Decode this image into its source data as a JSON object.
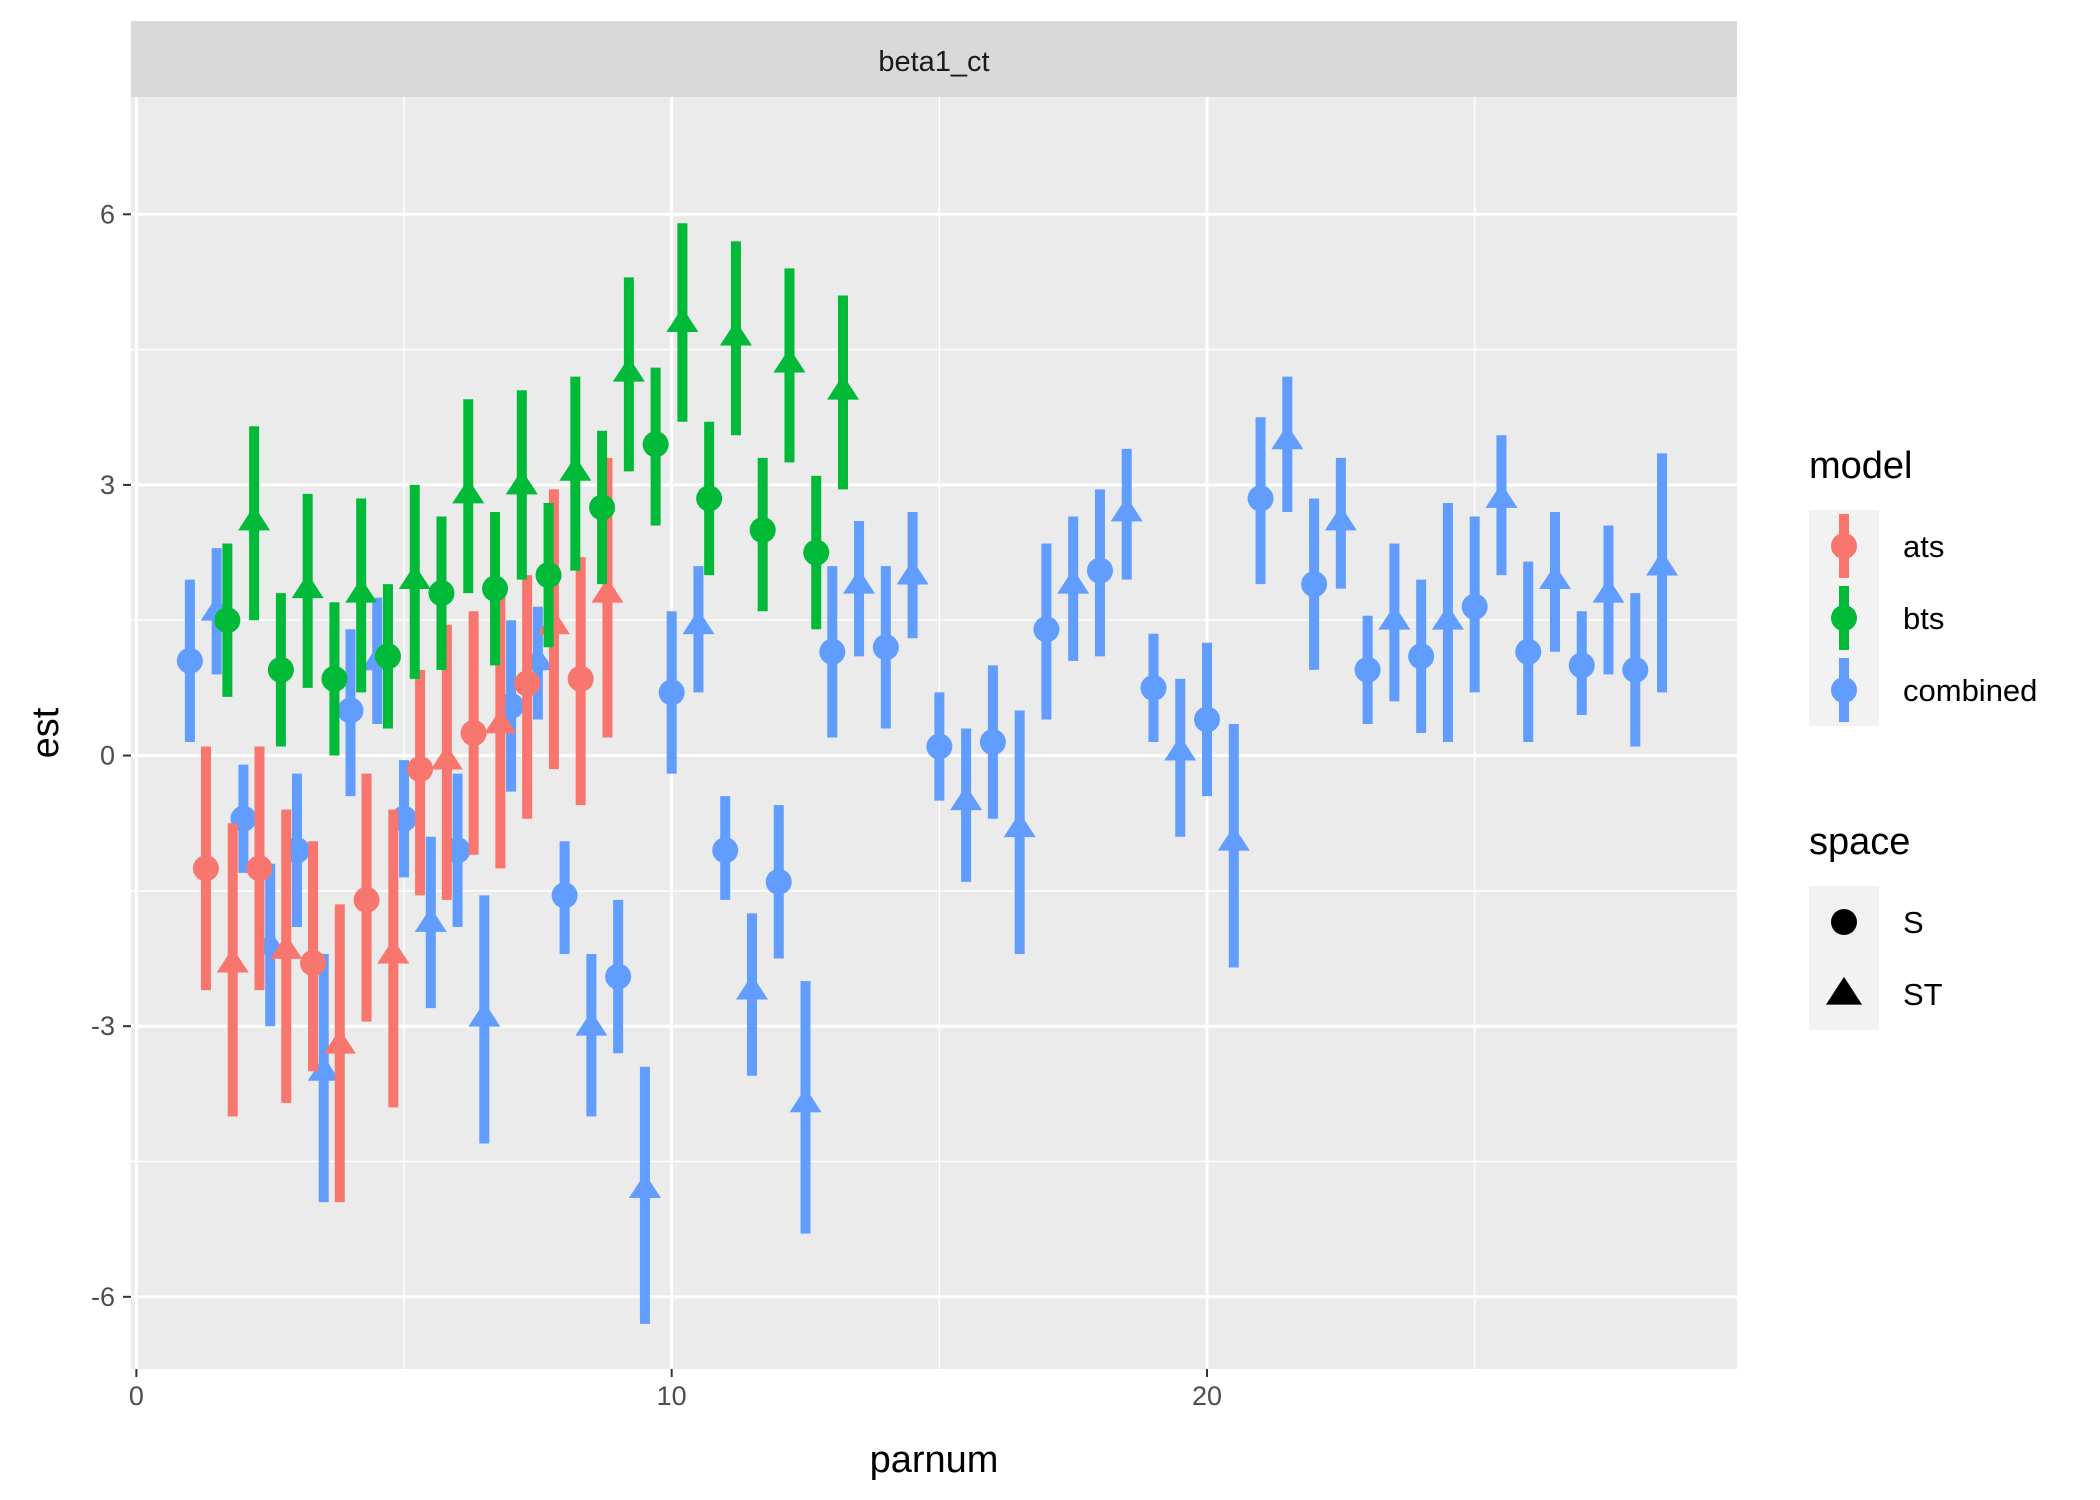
{
  "chart_data": {
    "type": "scatter",
    "facet_label": "beta1_ct",
    "xlabel": "parnum",
    "ylabel": "est",
    "xlim": [
      -0.1,
      29.9
    ],
    "ylim": [
      -6.8,
      7.3
    ],
    "x_ticks": [
      0,
      10,
      20
    ],
    "x_tick_labels": [
      "0",
      "10",
      "20"
    ],
    "y_ticks": [
      6,
      3,
      0,
      -3,
      -6
    ],
    "y_tick_labels": [
      "6",
      "3",
      "0",
      "-3",
      "-6"
    ],
    "grid": true,
    "legend_position": "right",
    "colors": {
      "ats": "#F8766D",
      "bts": "#00BA38",
      "combined": "#619CFF"
    },
    "legends": [
      {
        "title": "model",
        "entries": [
          "ats",
          "bts",
          "combined"
        ]
      },
      {
        "title": "space",
        "entries": [
          "S",
          "ST"
        ]
      }
    ],
    "series": [
      {
        "model": "combined",
        "shape": "circle",
        "points": [
          {
            "x": 1.0,
            "y": 1.05,
            "lo": 0.15,
            "hi": 1.95
          },
          {
            "x": 2.0,
            "y": -0.7,
            "lo": -1.3,
            "hi": -0.1
          },
          {
            "x": 3.0,
            "y": -1.05,
            "lo": -1.9,
            "hi": -0.2
          },
          {
            "x": 4.0,
            "y": 0.5,
            "lo": -0.45,
            "hi": 1.4
          },
          {
            "x": 5.0,
            "y": -0.7,
            "lo": -1.35,
            "hi": -0.05
          },
          {
            "x": 6.0,
            "y": -1.05,
            "lo": -1.9,
            "hi": -0.2
          },
          {
            "x": 7.0,
            "y": 0.55,
            "lo": -0.4,
            "hi": 1.5
          },
          {
            "x": 8.0,
            "y": -1.55,
            "lo": -2.2,
            "hi": -0.95
          },
          {
            "x": 9.0,
            "y": -2.45,
            "lo": -3.3,
            "hi": -1.6
          },
          {
            "x": 10.0,
            "y": 0.7,
            "lo": -0.2,
            "hi": 1.6
          },
          {
            "x": 11.0,
            "y": -1.05,
            "lo": -1.6,
            "hi": -0.45
          },
          {
            "x": 12.0,
            "y": -1.4,
            "lo": -2.25,
            "hi": -0.55
          },
          {
            "x": 13.0,
            "y": 1.15,
            "lo": 0.2,
            "hi": 2.1
          },
          {
            "x": 14.0,
            "y": 1.2,
            "lo": 0.3,
            "hi": 2.1
          },
          {
            "x": 15.0,
            "y": 0.1,
            "lo": -0.5,
            "hi": 0.7
          },
          {
            "x": 16.0,
            "y": 0.15,
            "lo": -0.7,
            "hi": 1.0
          },
          {
            "x": 17.0,
            "y": 1.4,
            "lo": 0.4,
            "hi": 2.35
          },
          {
            "x": 18.0,
            "y": 2.05,
            "lo": 1.1,
            "hi": 2.95
          },
          {
            "x": 19.0,
            "y": 0.75,
            "lo": 0.15,
            "hi": 1.35
          },
          {
            "x": 20.0,
            "y": 0.4,
            "lo": -0.45,
            "hi": 1.25
          },
          {
            "x": 21.0,
            "y": 2.85,
            "lo": 1.9,
            "hi": 3.75
          },
          {
            "x": 22.0,
            "y": 1.9,
            "lo": 0.95,
            "hi": 2.85
          },
          {
            "x": 23.0,
            "y": 0.95,
            "lo": 0.35,
            "hi": 1.55
          },
          {
            "x": 24.0,
            "y": 1.1,
            "lo": 0.25,
            "hi": 1.95
          },
          {
            "x": 25.0,
            "y": 1.65,
            "lo": 0.7,
            "hi": 2.65
          },
          {
            "x": 26.0,
            "y": 1.15,
            "lo": 0.15,
            "hi": 2.15
          },
          {
            "x": 27.0,
            "y": 1.0,
            "lo": 0.45,
            "hi": 1.6
          },
          {
            "x": 28.0,
            "y": 0.95,
            "lo": 0.1,
            "hi": 1.8
          }
        ]
      },
      {
        "model": "combined",
        "shape": "triangle",
        "points": [
          {
            "x": 1.5,
            "y": 1.6,
            "lo": 0.9,
            "hi": 2.3
          },
          {
            "x": 2.5,
            "y": -2.1,
            "lo": -3.0,
            "hi": -1.2
          },
          {
            "x": 3.5,
            "y": -3.5,
            "lo": -4.95,
            "hi": -2.2
          },
          {
            "x": 4.5,
            "y": 1.05,
            "lo": 0.35,
            "hi": 1.75
          },
          {
            "x": 5.5,
            "y": -1.85,
            "lo": -2.8,
            "hi": -0.9
          },
          {
            "x": 6.5,
            "y": -2.9,
            "lo": -4.3,
            "hi": -1.55
          },
          {
            "x": 7.5,
            "y": 1.05,
            "lo": 0.4,
            "hi": 1.65
          },
          {
            "x": 8.5,
            "y": -3.0,
            "lo": -4.0,
            "hi": -2.2
          },
          {
            "x": 9.5,
            "y": -4.8,
            "lo": -6.3,
            "hi": -3.45
          },
          {
            "x": 10.5,
            "y": 1.45,
            "lo": 0.7,
            "hi": 2.1
          },
          {
            "x": 11.5,
            "y": -2.6,
            "lo": -3.55,
            "hi": -1.75
          },
          {
            "x": 12.5,
            "y": -3.85,
            "lo": -5.3,
            "hi": -2.5
          },
          {
            "x": 13.5,
            "y": 1.9,
            "lo": 1.1,
            "hi": 2.6
          },
          {
            "x": 14.5,
            "y": 2.0,
            "lo": 1.3,
            "hi": 2.7
          },
          {
            "x": 15.5,
            "y": -0.5,
            "lo": -1.4,
            "hi": 0.3
          },
          {
            "x": 16.5,
            "y": -0.8,
            "lo": -2.2,
            "hi": 0.5
          },
          {
            "x": 17.5,
            "y": 1.9,
            "lo": 1.05,
            "hi": 2.65
          },
          {
            "x": 18.5,
            "y": 2.7,
            "lo": 1.95,
            "hi": 3.4
          },
          {
            "x": 19.5,
            "y": 0.05,
            "lo": -0.9,
            "hi": 0.85
          },
          {
            "x": 20.5,
            "y": -0.95,
            "lo": -2.35,
            "hi": 0.35
          },
          {
            "x": 21.5,
            "y": 3.5,
            "lo": 2.7,
            "hi": 4.2
          },
          {
            "x": 22.5,
            "y": 2.6,
            "lo": 1.85,
            "hi": 3.3
          },
          {
            "x": 23.5,
            "y": 1.5,
            "lo": 0.6,
            "hi": 2.35
          },
          {
            "x": 24.5,
            "y": 1.5,
            "lo": 0.15,
            "hi": 2.8
          },
          {
            "x": 25.5,
            "y": 2.85,
            "lo": 2.0,
            "hi": 3.55
          },
          {
            "x": 26.5,
            "y": 1.95,
            "lo": 1.15,
            "hi": 2.7
          },
          {
            "x": 27.5,
            "y": 1.8,
            "lo": 0.9,
            "hi": 2.55
          },
          {
            "x": 28.5,
            "y": 2.1,
            "lo": 0.7,
            "hi": 3.35
          }
        ]
      },
      {
        "model": "ats",
        "shape": "circle",
        "points": [
          {
            "x": 1.3,
            "y": -1.25,
            "lo": -2.6,
            "hi": 0.1
          },
          {
            "x": 2.3,
            "y": -1.25,
            "lo": -2.6,
            "hi": 0.1
          },
          {
            "x": 3.3,
            "y": -2.3,
            "lo": -3.5,
            "hi": -0.95
          },
          {
            "x": 4.3,
            "y": -1.6,
            "lo": -2.95,
            "hi": -0.2
          },
          {
            "x": 5.3,
            "y": -0.15,
            "lo": -1.55,
            "hi": 0.95
          },
          {
            "x": 6.3,
            "y": 0.25,
            "lo": -1.1,
            "hi": 1.6
          },
          {
            "x": 7.3,
            "y": 0.8,
            "lo": -0.7,
            "hi": 2.0
          },
          {
            "x": 8.3,
            "y": 0.85,
            "lo": -0.55,
            "hi": 2.2
          }
        ]
      },
      {
        "model": "ats",
        "shape": "triangle",
        "points": [
          {
            "x": 1.8,
            "y": -2.3,
            "lo": -4.0,
            "hi": -0.75
          },
          {
            "x": 2.8,
            "y": -2.15,
            "lo": -3.85,
            "hi": -0.6
          },
          {
            "x": 3.8,
            "y": -3.2,
            "lo": -4.95,
            "hi": -1.65
          },
          {
            "x": 4.8,
            "y": -2.2,
            "lo": -3.9,
            "hi": -0.6
          },
          {
            "x": 5.8,
            "y": -0.05,
            "lo": -1.6,
            "hi": 1.45
          },
          {
            "x": 6.8,
            "y": 0.35,
            "lo": -1.25,
            "hi": 1.8
          },
          {
            "x": 7.8,
            "y": 1.45,
            "lo": -0.15,
            "hi": 2.95
          },
          {
            "x": 8.8,
            "y": 1.8,
            "lo": 0.2,
            "hi": 3.3
          }
        ]
      },
      {
        "model": "bts",
        "shape": "circle",
        "points": [
          {
            "x": 1.7,
            "y": 1.5,
            "lo": 0.65,
            "hi": 2.35
          },
          {
            "x": 2.7,
            "y": 0.95,
            "lo": 0.1,
            "hi": 1.8
          },
          {
            "x": 3.7,
            "y": 0.85,
            "lo": 0.0,
            "hi": 1.7
          },
          {
            "x": 4.7,
            "y": 1.1,
            "lo": 0.3,
            "hi": 1.9
          },
          {
            "x": 5.7,
            "y": 1.8,
            "lo": 0.95,
            "hi": 2.65
          },
          {
            "x": 6.7,
            "y": 1.85,
            "lo": 1.0,
            "hi": 2.7
          },
          {
            "x": 7.7,
            "y": 2.0,
            "lo": 1.2,
            "hi": 2.8
          },
          {
            "x": 8.7,
            "y": 2.75,
            "lo": 1.9,
            "hi": 3.6
          },
          {
            "x": 9.7,
            "y": 3.45,
            "lo": 2.55,
            "hi": 4.3
          },
          {
            "x": 10.7,
            "y": 2.85,
            "lo": 2.0,
            "hi": 3.7
          },
          {
            "x": 11.7,
            "y": 2.5,
            "lo": 1.6,
            "hi": 3.3
          },
          {
            "x": 12.7,
            "y": 2.25,
            "lo": 1.4,
            "hi": 3.1
          }
        ]
      },
      {
        "model": "bts",
        "shape": "triangle",
        "points": [
          {
            "x": 2.2,
            "y": 2.6,
            "lo": 1.5,
            "hi": 3.65
          },
          {
            "x": 3.2,
            "y": 1.85,
            "lo": 0.75,
            "hi": 2.9
          },
          {
            "x": 4.2,
            "y": 1.8,
            "lo": 0.7,
            "hi": 2.85
          },
          {
            "x": 5.2,
            "y": 1.95,
            "lo": 0.85,
            "hi": 3.0
          },
          {
            "x": 6.2,
            "y": 2.9,
            "lo": 1.8,
            "hi": 3.95
          },
          {
            "x": 7.2,
            "y": 3.0,
            "lo": 1.95,
            "hi": 4.05
          },
          {
            "x": 8.2,
            "y": 3.15,
            "lo": 2.05,
            "hi": 4.2
          },
          {
            "x": 9.2,
            "y": 4.25,
            "lo": 3.15,
            "hi": 5.3
          },
          {
            "x": 10.2,
            "y": 4.8,
            "lo": 3.7,
            "hi": 5.9
          },
          {
            "x": 11.2,
            "y": 4.65,
            "lo": 3.55,
            "hi": 5.7
          },
          {
            "x": 12.2,
            "y": 4.35,
            "lo": 3.25,
            "hi": 5.4
          },
          {
            "x": 13.2,
            "y": 4.05,
            "lo": 2.95,
            "hi": 5.1
          }
        ]
      }
    ]
  }
}
